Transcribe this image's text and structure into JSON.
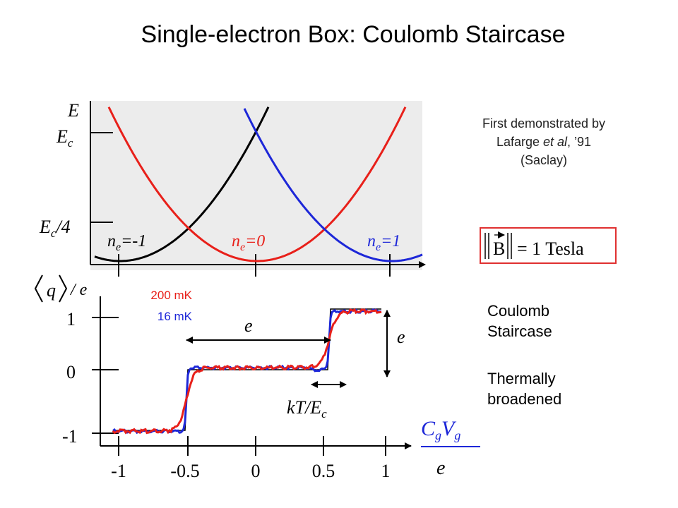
{
  "title": "Single-electron Box: Coulomb Staircase",
  "note": {
    "line1": "First demonstrated by",
    "name": "Lafarge ",
    "etal": "et al",
    "year": ", ’91",
    "place": "(Saclay)"
  },
  "field": {
    "lhs": "B",
    "rhs": "= 1 Tesla"
  },
  "side": {
    "l1": "Coulomb",
    "l2": "Staircase",
    "l3": "Thermally",
    "l4": "broadened"
  },
  "energy": {
    "axis": "E",
    "ec": "E",
    "ec_sub": "c",
    "ec4": "E",
    "ec4_sub": "c",
    "ec4_tail": "/4",
    "n_minus": "n",
    "n_minus_sub": "e",
    "n_minus_val": "=-1",
    "n_zero": "n",
    "n_zero_sub": "e",
    "n_zero_val": "=0",
    "n_plus": "n",
    "n_plus_sub": "e",
    "n_plus_val": "=1"
  },
  "staircase": {
    "temp_hi": "200 mK",
    "temp_lo": "16 mK",
    "ylabel_q": "q",
    "ylabel_e": "/ e",
    "yticks": [
      "1",
      "0",
      "-1"
    ],
    "xticks": [
      "-1",
      "-0.5",
      "0",
      "0.5",
      "1"
    ],
    "step_label": "e",
    "height_label": "e",
    "kt": "kT/E",
    "kt_sub": "c",
    "x_num": "C",
    "x_num_sub1": "g",
    "x_num_v": "V",
    "x_num_sub2": "g",
    "x_den": "e"
  },
  "colors": {
    "red": "#e8201a",
    "blue": "#1d27d8",
    "black": "#000000",
    "panel": "#ececec",
    "box": "#e03030"
  }
}
